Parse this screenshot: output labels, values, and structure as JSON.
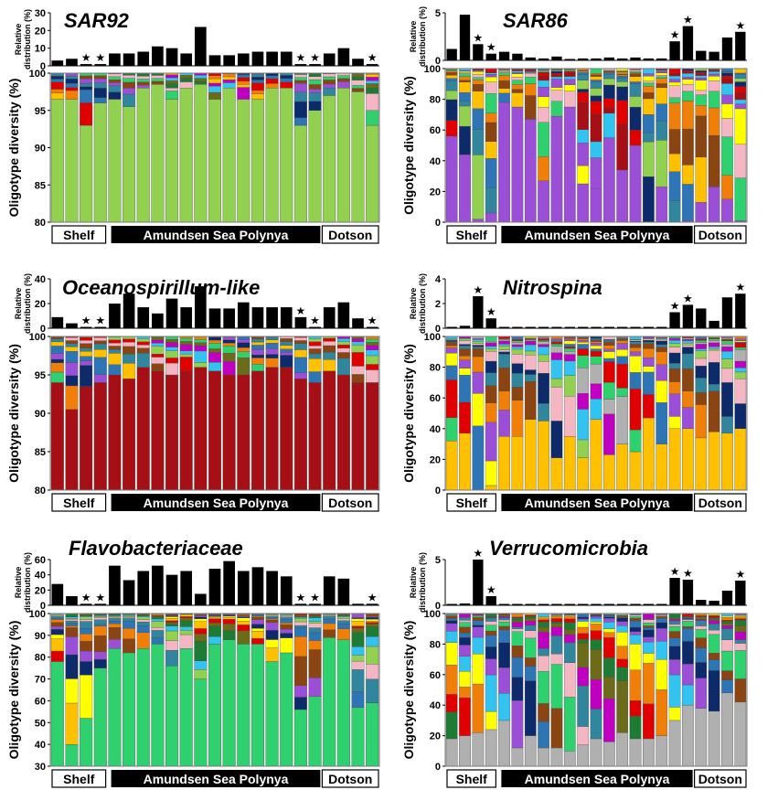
{
  "regions": {
    "shelf": "Shelf",
    "polynya": "Amundsen Sea Polynya",
    "dotson": "Dotson"
  },
  "top_ylabel": [
    "Relative",
    "distribution (%)"
  ],
  "bottom_ylabel": "Oligotype diversity (%)",
  "palette": {
    "light_green": "#92d050",
    "yellow": "#ffc000",
    "red": "#e00000",
    "dark_red": "#a50f15",
    "purple": "#9b4fd6",
    "navy": "#0d2a6b",
    "steel": "#2e75b6",
    "teal": "#31859c",
    "bright_yellow": "#ffff00",
    "mint": "#2ed16e",
    "orange": "#f07f09",
    "brown": "#8b4513",
    "dark_green": "#1e7b34",
    "gray": "#b0b0b0",
    "cyan": "#33c3f0",
    "pink": "#f4b6c2",
    "magenta": "#c000c0",
    "olive": "#6b6b1a",
    "black": "#000000"
  },
  "chart_data": [
    {
      "title": "SAR92",
      "type": "bar+stacked",
      "bar_values": [
        3,
        4,
        1,
        1,
        7,
        7,
        8,
        11,
        10,
        7,
        22,
        6,
        6,
        7,
        8,
        8,
        8,
        1,
        1,
        7,
        10,
        4,
        1
      ],
      "stars": [
        2,
        3,
        17,
        18,
        22
      ],
      "bar_yticks": [
        "30",
        "20",
        "10",
        "0"
      ],
      "bar_ylim": [
        0,
        30
      ],
      "stack_yticks": [
        "100",
        "95",
        "90",
        "85",
        "80"
      ],
      "stack_ylim": [
        80,
        100
      ],
      "main_color": "light_green",
      "main_values": [
        96.5,
        96.5,
        93,
        96,
        96.5,
        95.5,
        98,
        98.5,
        96.5,
        98,
        98.5,
        96.5,
        98,
        96.5,
        96.5,
        98,
        98,
        93,
        95,
        97,
        98,
        97.5,
        93
      ]
    },
    {
      "title": "SAR86",
      "type": "bar+stacked",
      "bar_values": [
        1.2,
        4.8,
        1.7,
        0.7,
        0.9,
        0.7,
        0.3,
        0.2,
        0.4,
        0.1,
        0.2,
        0.2,
        0.3,
        0.2,
        0.3,
        0.2,
        0.2,
        2,
        3.6,
        1,
        0.9,
        2.4,
        3
      ],
      "stars": [
        2,
        3,
        17,
        18,
        22
      ],
      "bar_yticks": [
        "5",
        "0"
      ],
      "bar_ylim": [
        0,
        5
      ],
      "stack_yticks": [
        "100",
        "80",
        "60",
        "40",
        "20",
        "0"
      ],
      "stack_ylim": [
        0,
        100
      ],
      "main_color": "purple",
      "main_values": [
        56,
        44,
        2,
        6,
        78,
        75,
        67,
        27,
        69,
        75,
        25,
        22,
        55,
        34,
        50,
        0,
        23,
        0,
        1,
        13,
        23,
        15,
        1
      ]
    },
    {
      "title": "Oceanospirillum-like",
      "type": "bar+stacked",
      "bar_values": [
        9,
        4,
        1,
        1,
        20,
        28,
        17,
        12,
        24,
        17,
        34,
        16,
        16,
        21,
        17,
        17,
        17,
        9,
        1,
        17,
        21,
        8,
        1
      ],
      "stars": [
        2,
        3,
        17,
        18,
        22
      ],
      "bar_yticks": [
        "40",
        "20",
        "0"
      ],
      "bar_ylim": [
        0,
        40
      ],
      "stack_yticks": [
        "100",
        "95",
        "90",
        "85",
        "80"
      ],
      "stack_ylim": [
        80,
        100
      ],
      "main_color": "dark_red",
      "main_values": [
        94,
        90.5,
        93.5,
        94,
        95,
        94.5,
        96,
        95.5,
        95,
        95.5,
        96,
        95.5,
        95,
        95,
        95.5,
        96,
        96,
        94.5,
        94,
        95.5,
        95,
        94,
        94
      ]
    },
    {
      "title": "Nitrospina",
      "type": "bar+stacked",
      "bar_values": [
        0.1,
        0.2,
        2.6,
        0.8,
        0.1,
        0.05,
        0.05,
        0.05,
        0.05,
        0.05,
        0.05,
        0.05,
        0.05,
        0.05,
        0.1,
        0.05,
        0.05,
        1.3,
        1.9,
        1.6,
        0.6,
        2.5,
        2.8
      ],
      "stars": [
        2,
        3,
        17,
        18,
        22
      ],
      "bar_yticks": [
        "4",
        "2",
        "0"
      ],
      "bar_ylim": [
        0,
        4
      ],
      "stack_yticks": [
        "100",
        "80",
        "60",
        "40",
        "20",
        "0"
      ],
      "stack_ylim": [
        0,
        100
      ],
      "main_color": "yellow",
      "main_values": [
        32,
        37,
        0,
        3,
        35,
        35,
        46,
        45,
        21,
        35,
        21,
        46,
        23,
        30,
        25,
        47,
        30,
        40,
        40,
        34,
        38,
        37,
        40
      ]
    },
    {
      "title": "Flavobacteriaceae",
      "type": "bar+stacked",
      "bar_values": [
        28,
        12,
        2,
        2,
        52,
        33,
        45,
        52,
        40,
        45,
        15,
        48,
        58,
        45,
        50,
        45,
        38,
        2,
        2,
        38,
        35,
        2,
        2
      ],
      "stars": [
        2,
        3,
        17,
        18,
        22
      ],
      "bar_yticks": [
        "60",
        "40",
        "20",
        "0"
      ],
      "bar_ylim": [
        0,
        60
      ],
      "stack_yticks": [
        "100",
        "90",
        "80",
        "70",
        "60",
        "50",
        "40",
        "30"
      ],
      "stack_ylim": [
        30,
        100
      ],
      "main_color": "mint",
      "main_values": [
        78,
        40,
        52,
        75,
        84,
        82,
        84,
        86,
        76,
        84,
        70,
        86,
        88,
        86,
        86,
        78,
        82,
        56,
        62,
        89,
        88,
        57,
        59
      ]
    },
    {
      "title": "Verrucomicrobia",
      "type": "bar+stacked",
      "bar_values": [
        0.1,
        0.2,
        5,
        1,
        0.05,
        0.05,
        0.05,
        0.05,
        0.05,
        0.05,
        0.05,
        0.05,
        0.05,
        0.05,
        0.05,
        0.05,
        0.05,
        3,
        2.8,
        0.6,
        0.5,
        1.6,
        2.7
      ],
      "stars": [
        2,
        3,
        17,
        18,
        22
      ],
      "bar_yticks": [
        "5",
        "0"
      ],
      "bar_ylim": [
        0,
        5
      ],
      "stack_yticks": [
        "100",
        "80",
        "60",
        "40",
        "20",
        "0"
      ],
      "stack_ylim": [
        0,
        100
      ],
      "main_color": "gray",
      "main_values": [
        18,
        20,
        22,
        24,
        30,
        12,
        20,
        12,
        12,
        10,
        14,
        18,
        16,
        22,
        18,
        18,
        20,
        30,
        40,
        38,
        36,
        48,
        42
      ]
    }
  ]
}
